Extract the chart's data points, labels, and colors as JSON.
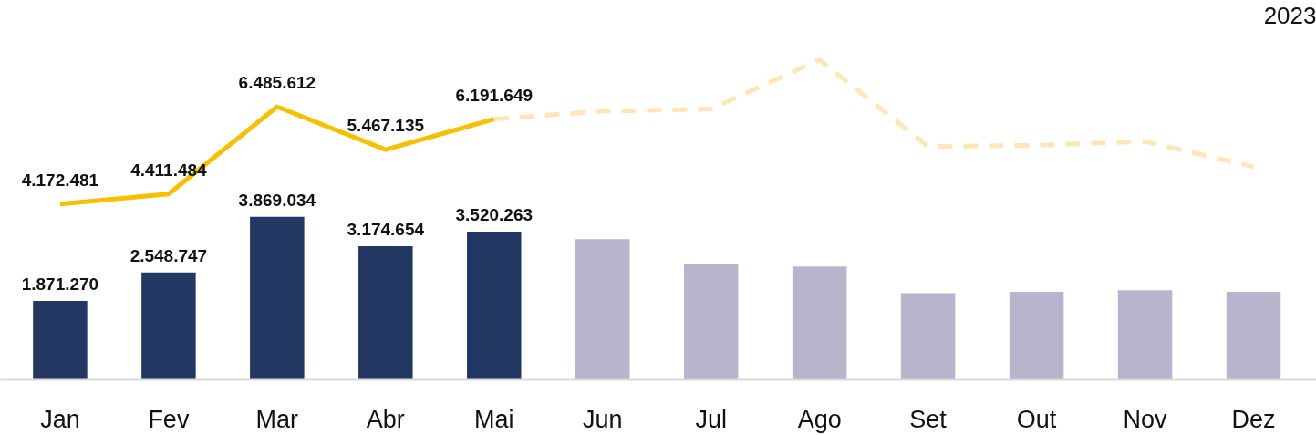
{
  "chart_data": {
    "type": "bar",
    "title": "2023",
    "categories": [
      "Jan",
      "Fev",
      "Mar",
      "Abr",
      "Mai",
      "Jun",
      "Jul",
      "Ago",
      "Set",
      "Out",
      "Nov",
      "Dez"
    ],
    "series": [
      {
        "colors": [
          "#223761",
          "#223761",
          "#223761",
          "#223761",
          "#223761",
          "#b7b4cb",
          "#b7b4cb",
          "#b7b4cb",
          "#b7b4cb",
          "#b7b4cb",
          "#b7b4cb",
          "#b7b4cb"
        ],
        "values": [
          1871270,
          2548747,
          3869034,
          3174654,
          3520263,
          3340000,
          2740000,
          2690000,
          2060000,
          2090000,
          2130000,
          2090000
        ],
        "value_labels": [
          "1.871.270",
          "2.548.747",
          "3.869.034",
          "3.174.654",
          "3.520.263",
          null,
          null,
          null,
          null,
          null,
          null,
          null
        ]
      },
      {
        "type": "line",
        "color": "#f5c000",
        "line_style": "solid",
        "values": [
          4172481,
          4411484,
          6485612,
          5467135,
          6191649,
          null,
          null,
          null,
          null,
          null,
          null,
          null
        ],
        "value_labels": [
          "4.172.481",
          "4.411.484",
          "6.485.612",
          "5.467.135",
          "6.191.649",
          null,
          null,
          null,
          null,
          null,
          null,
          null
        ]
      },
      {
        "type": "line",
        "color": "#fde6b8",
        "line_style": "dashed",
        "values": [
          null,
          null,
          null,
          null,
          6191649,
          6380000,
          6430000,
          7600000,
          5540000,
          5570000,
          5660000,
          5060000
        ]
      }
    ],
    "grid": false
  }
}
